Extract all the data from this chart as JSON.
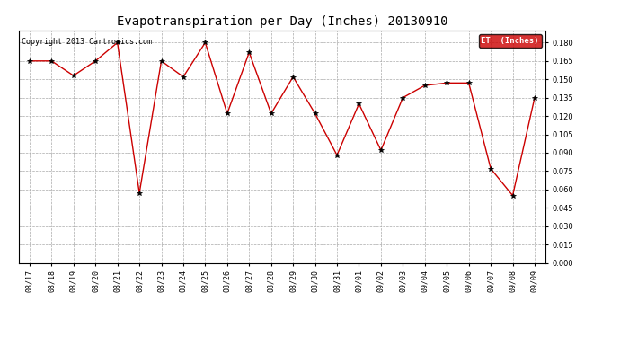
{
  "title": "Evapotranspiration per Day (Inches) 20130910",
  "copyright": "Copyright 2013 Cartronics.com",
  "legend_label": "ET  (Inches)",
  "legend_bg": "#cc0000",
  "legend_text_color": "#ffffff",
  "x_labels": [
    "08/17",
    "08/18",
    "08/19",
    "08/20",
    "08/21",
    "08/22",
    "08/23",
    "08/24",
    "08/25",
    "08/26",
    "08/27",
    "08/28",
    "08/29",
    "08/30",
    "08/31",
    "09/01",
    "09/02",
    "09/03",
    "09/04",
    "09/05",
    "09/06",
    "09/07",
    "09/08",
    "09/09"
  ],
  "y_values": [
    0.165,
    0.165,
    0.153,
    0.165,
    0.18,
    0.057,
    0.165,
    0.152,
    0.18,
    0.122,
    0.172,
    0.122,
    0.152,
    0.122,
    0.088,
    0.13,
    0.092,
    0.135,
    0.145,
    0.147,
    0.147,
    0.077,
    0.055,
    0.135
  ],
  "line_color": "#cc0000",
  "marker": "*",
  "marker_color": "#000000",
  "ylim": [
    0.0,
    0.19
  ],
  "yticks": [
    0.0,
    0.015,
    0.03,
    0.045,
    0.06,
    0.075,
    0.09,
    0.105,
    0.12,
    0.135,
    0.15,
    0.165,
    0.18
  ],
  "bg_color": "#ffffff",
  "grid_color": "#aaaaaa",
  "title_fontsize": 10,
  "tick_fontsize": 6,
  "copyright_fontsize": 6,
  "legend_fontsize": 6.5
}
